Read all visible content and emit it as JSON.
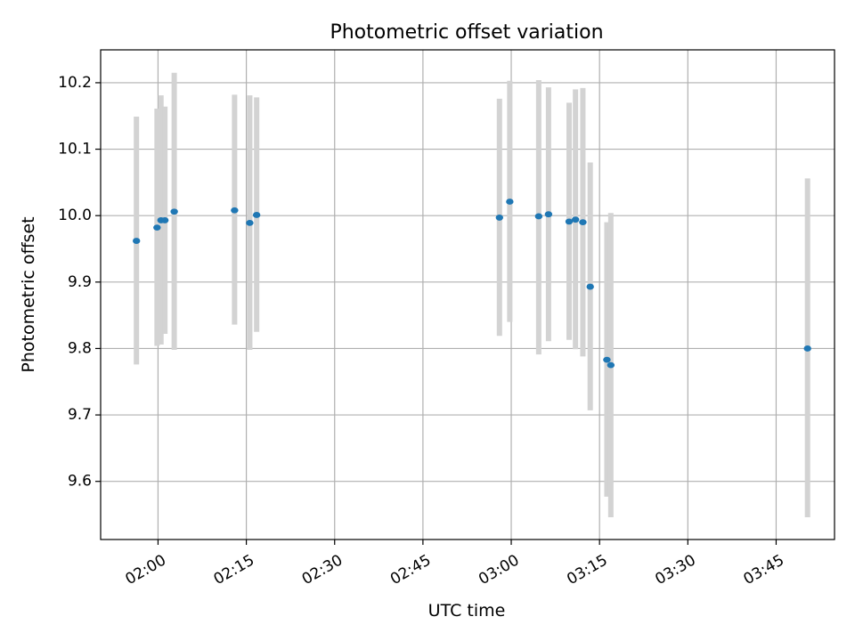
{
  "chart_data": {
    "type": "scatter",
    "title": "Photometric offset variation",
    "xlabel": "UTC time",
    "ylabel": "Photometric offset",
    "x_unit": "HH:MM UTC",
    "xlim": [
      "01:50:15",
      "03:54:55"
    ],
    "ylim": [
      9.5125,
      10.2495
    ],
    "x_ticks": [
      "02:00",
      "02:15",
      "02:30",
      "02:45",
      "03:00",
      "03:15",
      "03:30",
      "03:45"
    ],
    "y_ticks": [
      9.6,
      9.7,
      9.8,
      9.9,
      10.0,
      10.1,
      10.2
    ],
    "grid": true,
    "colors": {
      "point": "#1f77b4",
      "errorbar": "#d3d3d3",
      "grid": "#b0b0b0"
    },
    "points": [
      {
        "x": "01:56:20",
        "y": 9.962,
        "ylow": 9.776,
        "yhigh": 10.149
      },
      {
        "x": "01:59:50",
        "y": 9.982,
        "ylow": 9.804,
        "yhigh": 10.161
      },
      {
        "x": "02:00:30",
        "y": 9.993,
        "ylow": 9.806,
        "yhigh": 10.181
      },
      {
        "x": "02:01:10",
        "y": 9.993,
        "ylow": 9.822,
        "yhigh": 10.164
      },
      {
        "x": "02:02:45",
        "y": 10.006,
        "ylow": 9.798,
        "yhigh": 10.215
      },
      {
        "x": "02:13:00",
        "y": 10.008,
        "ylow": 9.836,
        "yhigh": 10.182
      },
      {
        "x": "02:15:35",
        "y": 9.989,
        "ylow": 9.798,
        "yhigh": 10.181
      },
      {
        "x": "02:16:45",
        "y": 10.001,
        "ylow": 9.825,
        "yhigh": 10.178
      },
      {
        "x": "02:58:00",
        "y": 9.997,
        "ylow": 9.819,
        "yhigh": 10.176
      },
      {
        "x": "02:59:45",
        "y": 10.021,
        "ylow": 9.84,
        "yhigh": 10.203
      },
      {
        "x": "03:04:40",
        "y": 9.999,
        "ylow": 9.791,
        "yhigh": 10.204
      },
      {
        "x": "03:06:20",
        "y": 10.002,
        "ylow": 9.811,
        "yhigh": 10.193
      },
      {
        "x": "03:09:50",
        "y": 9.991,
        "ylow": 9.813,
        "yhigh": 10.17
      },
      {
        "x": "03:10:55",
        "y": 9.994,
        "ylow": 9.799,
        "yhigh": 10.19
      },
      {
        "x": "03:12:10",
        "y": 9.99,
        "ylow": 9.788,
        "yhigh": 10.192
      },
      {
        "x": "03:13:25",
        "y": 9.893,
        "ylow": 9.707,
        "yhigh": 10.08
      },
      {
        "x": "03:16:15",
        "y": 9.783,
        "ylow": 9.577,
        "yhigh": 9.99
      },
      {
        "x": "03:16:55",
        "y": 9.775,
        "ylow": 9.546,
        "yhigh": 10.004
      },
      {
        "x": "03:50:20",
        "y": 9.8,
        "ylow": 9.546,
        "yhigh": 10.056
      }
    ]
  }
}
